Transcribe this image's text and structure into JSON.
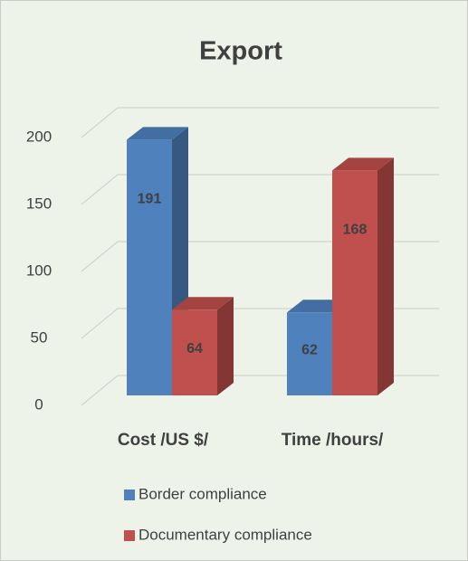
{
  "chart_data": {
    "type": "bar3d",
    "title": "Export",
    "categories": [
      "Cost /US $/",
      "Time /hours/"
    ],
    "series": [
      {
        "name": "Border compliance",
        "color": "#4f81bd",
        "values": [
          191,
          62
        ]
      },
      {
        "name": "Documentary compliance",
        "color": "#c0504d",
        "values": [
          64,
          168
        ]
      }
    ],
    "ylim": [
      0,
      200
    ],
    "yticks": [
      0,
      50,
      100,
      150,
      200
    ],
    "grid": true
  }
}
